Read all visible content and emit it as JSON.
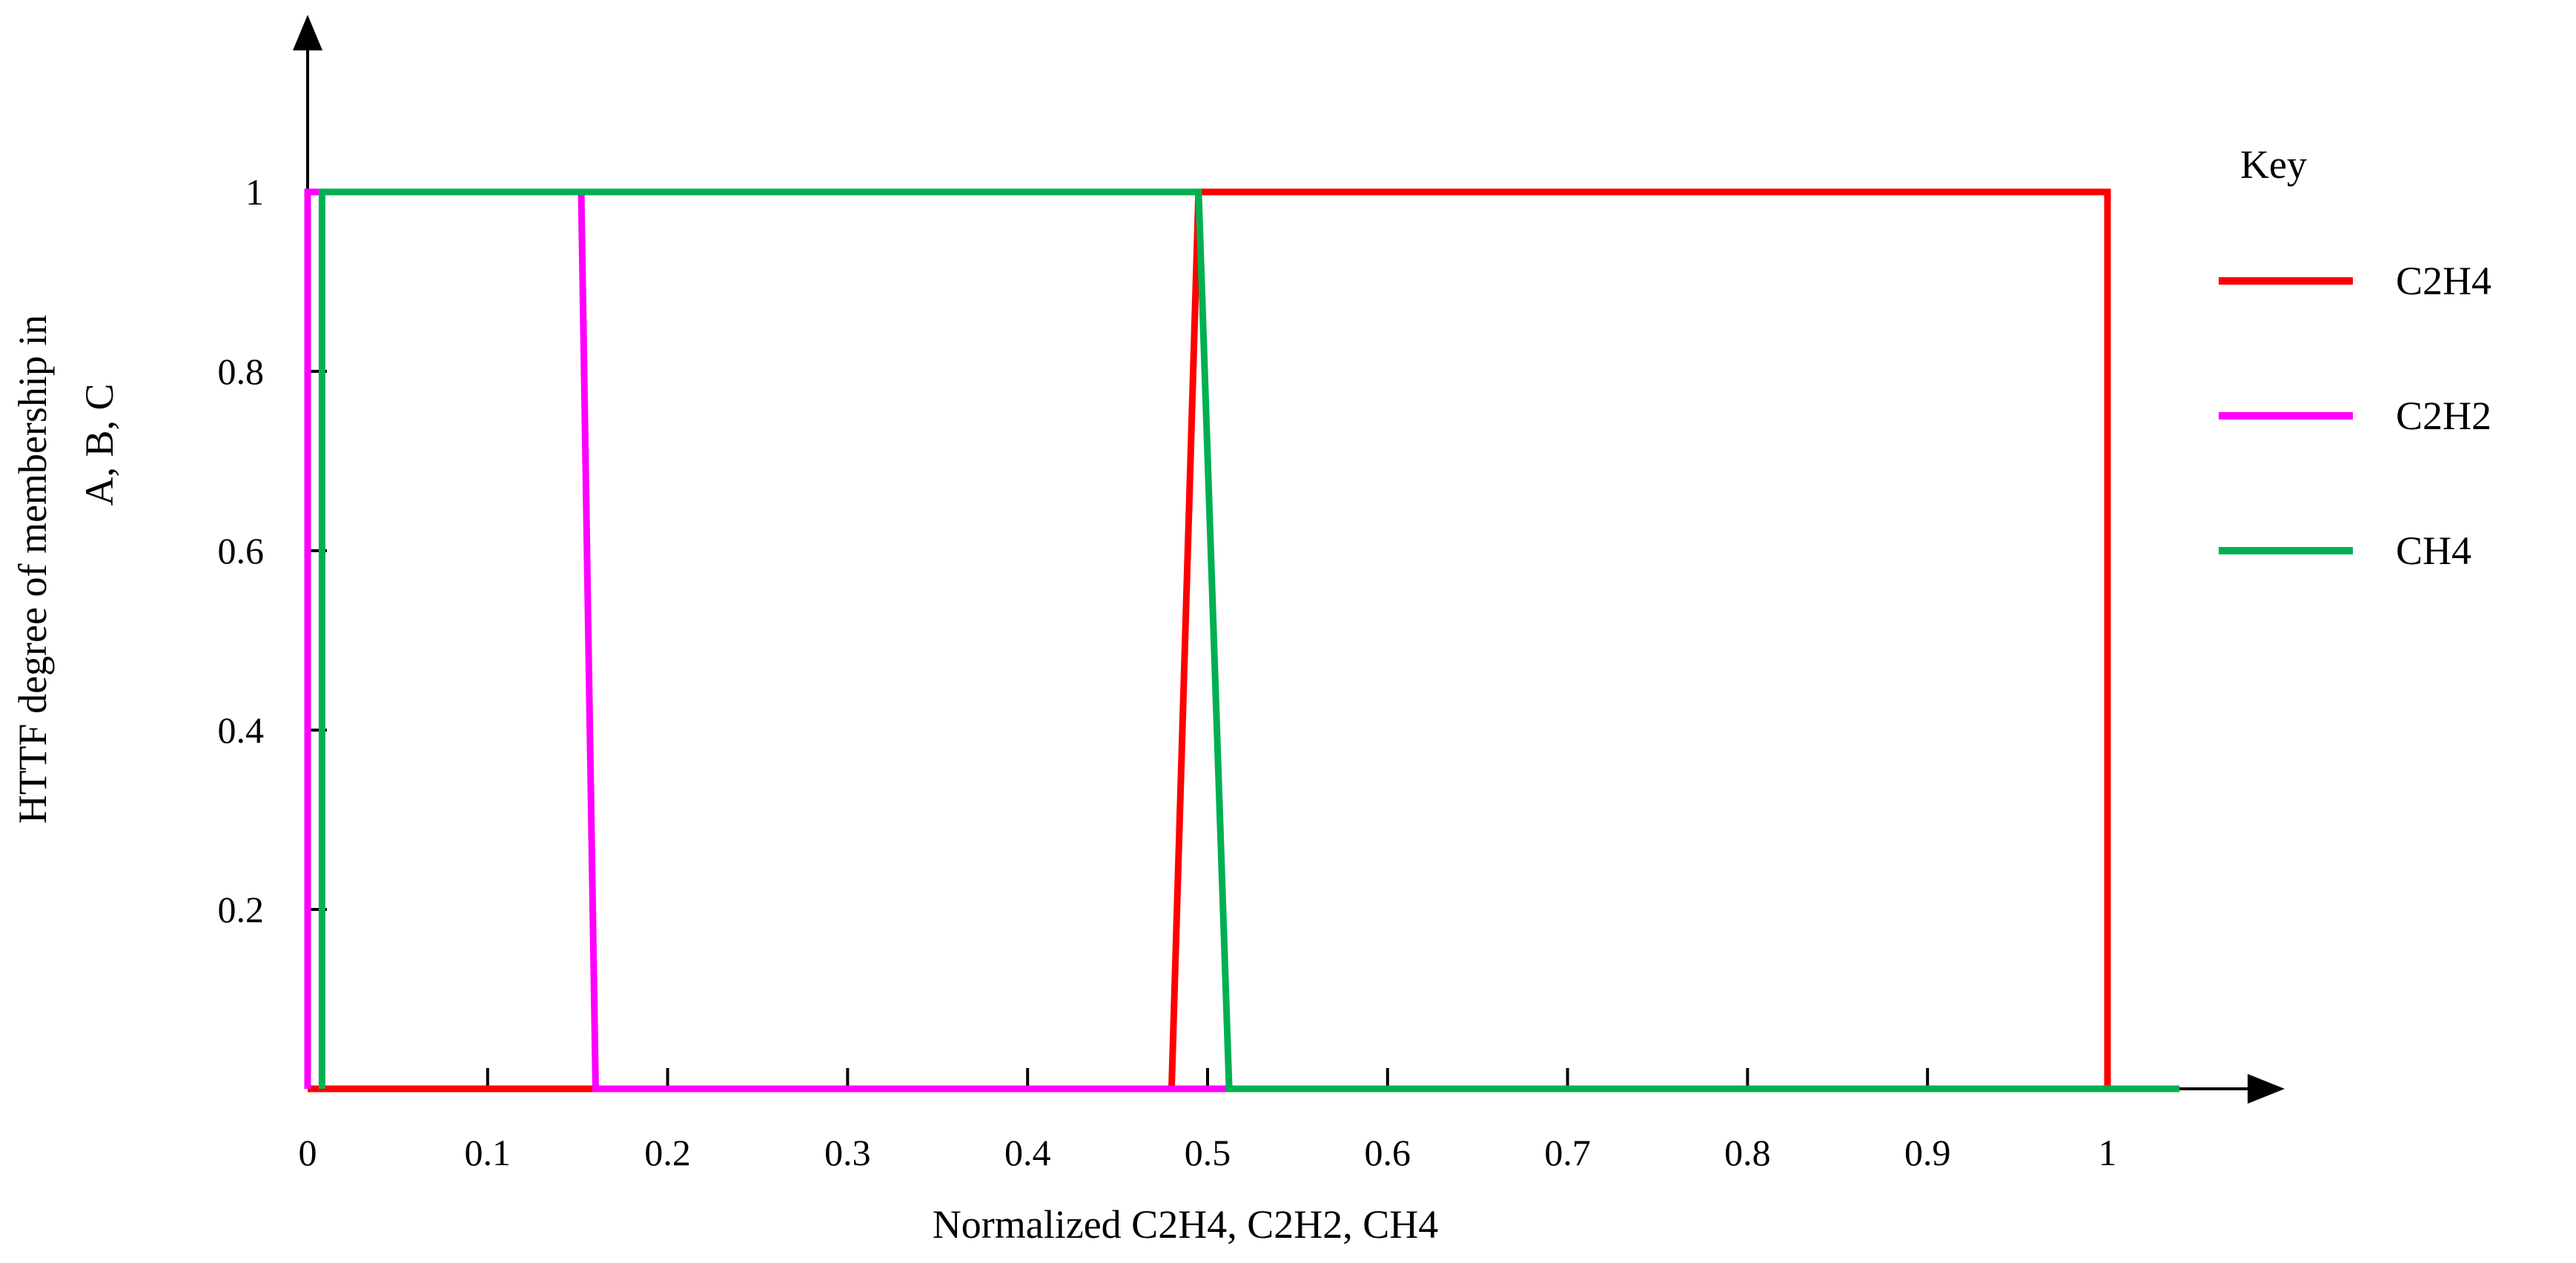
{
  "chart_data": {
    "type": "line",
    "title": "",
    "xlabel": "Normalized  C2H4,  C2H2,  CH4",
    "ylabel_lines": [
      "HTTF degree of membership in",
      "A, B, C"
    ],
    "xlim": [
      0,
      1.1
    ],
    "ylim": [
      0,
      1
    ],
    "x_ticks": [
      "0",
      "0.1",
      "0.2",
      "0.3",
      "0.4",
      "0.5",
      "0.6",
      "0.7",
      "0.8",
      "0.9",
      "1"
    ],
    "y_ticks": [
      "0.2",
      "0.4",
      "0.6",
      "0.8",
      "1"
    ],
    "grid": false,
    "legend": {
      "title": "Key",
      "position": "right"
    },
    "series": [
      {
        "name": "C2H4",
        "color": "#ff0000",
        "legend_label": "C2H4",
        "x": [
          0,
          0.48,
          0.495,
          1,
          1
        ],
        "y": [
          0,
          0,
          1,
          1,
          0
        ]
      },
      {
        "name": "C2H2",
        "color": "#ff00ff",
        "legend_label": " C2H2",
        "x": [
          0,
          0,
          0.152,
          0.16,
          1
        ],
        "y": [
          0,
          1,
          1,
          0,
          0
        ]
      },
      {
        "name": "CH4",
        "color": "#00b050",
        "legend_label": "CH4",
        "x": [
          0.008,
          0.008,
          0.495,
          0.512,
          1,
          1.04
        ],
        "y": [
          0,
          1,
          1,
          0,
          0,
          0
        ]
      }
    ]
  }
}
